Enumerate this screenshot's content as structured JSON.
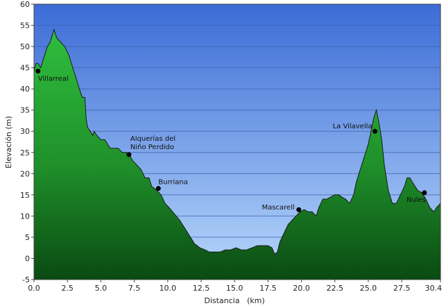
{
  "chart_data": {
    "type": "area",
    "title": "",
    "xlabel": "Distancia   (km)",
    "ylabel": "Elevación (m)",
    "xlim": [
      0,
      30.4
    ],
    "ylim": [
      -5,
      60
    ],
    "x_ticks": [
      "0.0",
      "2.5",
      "5.0",
      "7.5",
      "10.0",
      "12.5",
      "15.0",
      "17.5",
      "20.0",
      "22.5",
      "25.0",
      "27.5",
      "30.4"
    ],
    "x_tick_values": [
      0,
      2.5,
      5,
      7.5,
      10,
      12.5,
      15,
      17.5,
      20,
      22.5,
      25,
      27.5,
      30.4
    ],
    "y_ticks": [
      "-5",
      "0",
      "5",
      "10",
      "15",
      "20",
      "25",
      "30",
      "35",
      "40",
      "45",
      "50",
      "55",
      "60"
    ],
    "y_tick_values": [
      -5,
      0,
      5,
      10,
      15,
      20,
      25,
      30,
      35,
      40,
      45,
      50,
      55,
      60
    ],
    "grid": true,
    "colors": {
      "plot_bg_top": "#3c6cd6",
      "plot_bg_bottom": "#b8d8fb",
      "fill_top": "#2fbf3e",
      "fill_bottom": "#0a4a12",
      "outline": "#1a1a1a"
    },
    "profile": {
      "x": [
        0,
        0.15,
        0.3,
        0.5,
        0.8,
        1.0,
        1.2,
        1.4,
        1.5,
        1.7,
        2.0,
        2.3,
        2.6,
        2.9,
        3.2,
        3.4,
        3.6,
        3.8,
        3.9,
        4.0,
        4.2,
        4.4,
        4.5,
        4.7,
        5.0,
        5.3,
        5.5,
        5.7,
        6.0,
        6.3,
        6.6,
        6.9,
        7.1,
        7.4,
        7.7,
        8.0,
        8.3,
        8.6,
        8.8,
        9.0,
        9.2,
        9.5,
        9.8,
        10.1,
        10.5,
        10.9,
        11.3,
        11.7,
        12.0,
        12.4,
        12.8,
        13.1,
        13.5,
        13.9,
        14.3,
        14.7,
        15.1,
        15.5,
        15.9,
        16.3,
        16.7,
        17.1,
        17.5,
        17.8,
        18.0,
        18.2,
        18.4,
        18.7,
        19.0,
        19.3,
        19.6,
        19.9,
        20.2,
        20.5,
        20.8,
        21.1,
        21.3,
        21.6,
        21.9,
        22.2,
        22.5,
        22.8,
        23.0,
        23.3,
        23.6,
        23.9,
        24.1,
        24.4,
        24.7,
        25.0,
        25.2,
        25.4,
        25.6,
        25.8,
        26.0,
        26.2,
        26.5,
        26.8,
        27.1,
        27.4,
        27.7,
        27.9,
        28.1,
        28.4,
        28.7,
        29.0,
        29.3,
        29.6,
        29.9,
        30.1,
        30.4
      ],
      "y": [
        44,
        46,
        46,
        45,
        48,
        50,
        51,
        53,
        54,
        52,
        51,
        50,
        48,
        45,
        42,
        40,
        38,
        38,
        33,
        31,
        30,
        29,
        30,
        29,
        28,
        28,
        27,
        26,
        26,
        26,
        25,
        25,
        24.5,
        23,
        22,
        21,
        19,
        19,
        17,
        16.5,
        16,
        15,
        13,
        12,
        10.5,
        9,
        7,
        5,
        3.5,
        2.5,
        2,
        1.5,
        1.5,
        1.5,
        2,
        2,
        2.5,
        2,
        2,
        2.5,
        3,
        3,
        3,
        2.5,
        1,
        1.5,
        4,
        6,
        8,
        9,
        10,
        11,
        11.5,
        11,
        11,
        10,
        12,
        14,
        14,
        14.5,
        15,
        15,
        14.5,
        14,
        13,
        15,
        18,
        21,
        24,
        27,
        30,
        33,
        35,
        32,
        28,
        22,
        16,
        13,
        13,
        15,
        17,
        19,
        19,
        17.5,
        16,
        15.5,
        14,
        12,
        11,
        12,
        13
      ]
    },
    "places": [
      {
        "lines": [
          "Villarreal"
        ],
        "x": 0.3,
        "y": 44.2,
        "anchor": "start",
        "dx": 0,
        "dy": 14
      },
      {
        "lines": [
          "Alquerías del",
          "Niño Perdido"
        ],
        "x": 7.1,
        "y": 24.5,
        "anchor": "start",
        "dx": 2,
        "dy": -20
      },
      {
        "lines": [
          "Burriana"
        ],
        "x": 9.3,
        "y": 16.5,
        "anchor": "start",
        "dx": 0,
        "dy": -6
      },
      {
        "lines": [
          "Mascarell"
        ],
        "x": 19.8,
        "y": 11.5,
        "anchor": "end",
        "dx": -6,
        "dy": 0
      },
      {
        "lines": [
          "La Vilavella"
        ],
        "x": 25.5,
        "y": 30.0,
        "anchor": "end",
        "dx": -4,
        "dy": -4
      },
      {
        "lines": [
          "Nules"
        ],
        "x": 29.2,
        "y": 15.5,
        "anchor": "end",
        "dx": 2,
        "dy": 13
      }
    ]
  }
}
